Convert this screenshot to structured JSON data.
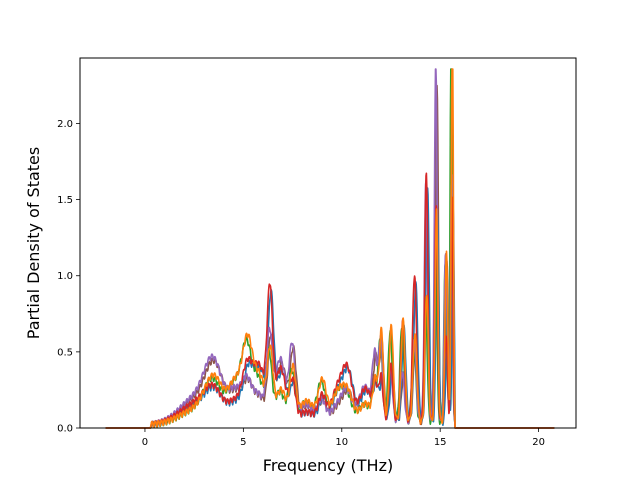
{
  "chart_data": {
    "type": "line",
    "title": "",
    "xlabel": "Frequency (THz)",
    "ylabel": "Partial Density of States",
    "xlim": [
      -3.3,
      21.9
    ],
    "ylim": [
      0.0,
      2.43
    ],
    "xticks": [
      0,
      5,
      10,
      15,
      20
    ],
    "yticks": [
      0.0,
      0.5,
      1.0,
      1.5,
      2.0
    ],
    "xtick_labels": [
      "0",
      "5",
      "10",
      "15",
      "20"
    ],
    "ytick_labels": [
      "0.0",
      "0.5",
      "1.0",
      "1.5",
      "2.0"
    ],
    "grid": false,
    "legend": "none",
    "series_colors": [
      "#8c564b",
      "#1f77b4",
      "#2ca02c",
      "#9467bd",
      "#d62728",
      "#ff7f0e"
    ],
    "series_count": 6,
    "peaks": [
      {
        "x": 0.3,
        "y": 0.0,
        "w": 0.0
      },
      {
        "x": 2.6,
        "y": 0.14,
        "w": 0.8
      },
      {
        "x": 3.5,
        "y": 0.3,
        "w": 0.45
      },
      {
        "x": 4.6,
        "y": 0.22,
        "w": 0.35
      },
      {
        "x": 5.2,
        "y": 0.4,
        "w": 0.25
      },
      {
        "x": 5.8,
        "y": 0.32,
        "w": 0.3
      },
      {
        "x": 6.35,
        "y": 0.7,
        "w": 0.14
      },
      {
        "x": 6.9,
        "y": 0.38,
        "w": 0.25
      },
      {
        "x": 7.5,
        "y": 0.42,
        "w": 0.15
      },
      {
        "x": 8.2,
        "y": 0.12,
        "w": 0.35
      },
      {
        "x": 9.0,
        "y": 0.22,
        "w": 0.2
      },
      {
        "x": 9.8,
        "y": 0.2,
        "w": 0.3
      },
      {
        "x": 10.3,
        "y": 0.26,
        "w": 0.25
      },
      {
        "x": 11.2,
        "y": 0.22,
        "w": 0.3
      },
      {
        "x": 11.7,
        "y": 0.35,
        "w": 0.12
      },
      {
        "x": 12.0,
        "y": 0.55,
        "w": 0.1
      },
      {
        "x": 12.5,
        "y": 0.52,
        "w": 0.1
      },
      {
        "x": 13.1,
        "y": 0.65,
        "w": 0.1
      },
      {
        "x": 13.7,
        "y": 0.82,
        "w": 0.1
      },
      {
        "x": 14.3,
        "y": 1.6,
        "w": 0.08
      },
      {
        "x": 14.8,
        "y": 2.05,
        "w": 0.07
      },
      {
        "x": 15.3,
        "y": 1.1,
        "w": 0.07
      },
      {
        "x": 15.6,
        "y": 2.3,
        "w": 0.05
      }
    ],
    "x_end_of_spectrum": 15.75
  }
}
